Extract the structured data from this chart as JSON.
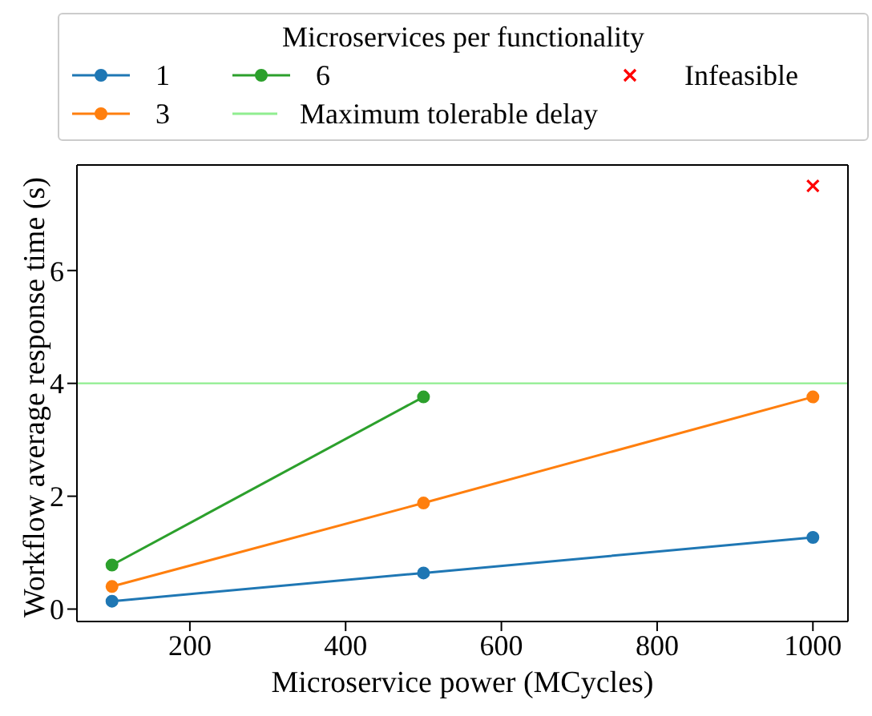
{
  "chart_data": {
    "type": "line",
    "xlabel": "Microservice power (MCycles)",
    "ylabel": "Workflow average response time (s)",
    "legend_title": "Microservices per functionality",
    "legend": "top",
    "marker": "circle",
    "grid": false,
    "xlim": [
      55,
      1045
    ],
    "xticks": [
      200,
      400,
      600,
      800,
      1000
    ],
    "ylim": [
      -0.22,
      7.87
    ],
    "yticks": [
      0,
      2,
      4,
      6
    ],
    "series": [
      {
        "name": "1",
        "color": "#1f77b4",
        "x": [
          100,
          500,
          1000
        ],
        "values": [
          0.14,
          0.64,
          1.27
        ]
      },
      {
        "name": "3",
        "color": "#ff7f0e",
        "x": [
          100,
          500,
          1000
        ],
        "values": [
          0.4,
          1.88,
          3.76
        ]
      },
      {
        "name": "6",
        "color": "#2ca02c",
        "x": [
          100,
          500
        ],
        "values": [
          0.78,
          3.76
        ]
      },
      {
        "name": "Infeasible",
        "type": "scatter",
        "marker": "cross",
        "color": "#ff0000",
        "x": [
          1000
        ],
        "values": [
          7.5
        ]
      }
    ],
    "ref_lines": [
      {
        "axis": "y",
        "value": 4,
        "label": "Maximum tolerable delay",
        "color": "#90ee90"
      }
    ]
  }
}
